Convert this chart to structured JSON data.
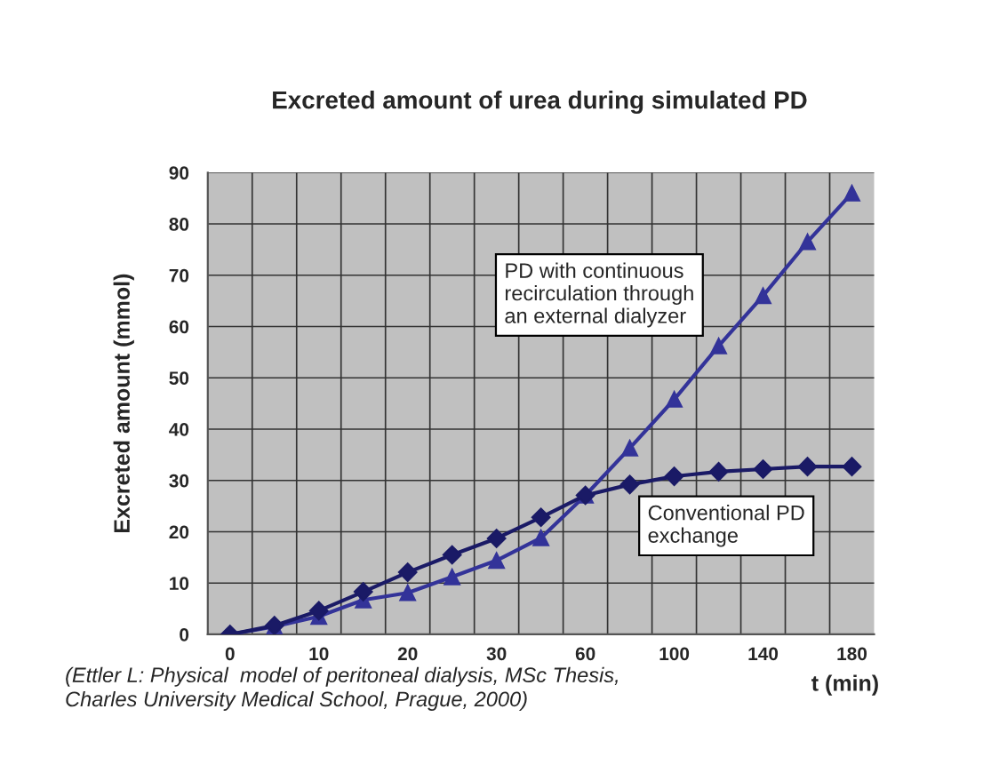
{
  "chart_data": {
    "type": "line",
    "title": "Excreted amount of urea during simulated PD",
    "xlabel": "t (min)",
    "ylabel": "Excreted amount (mmol)",
    "categories": [
      "0",
      null,
      "10",
      null,
      "20",
      null,
      "30",
      null,
      "60",
      null,
      "100",
      null,
      "140",
      null,
      "180"
    ],
    "series": [
      {
        "name": "PD with continuous\nrecirculation through\nan external dialyzer",
        "color": "#333399",
        "marker": "triangle",
        "values": [
          0,
          1.5,
          3.5,
          6.7,
          8.1,
          11.2,
          14.4,
          18.8,
          27.1,
          36.3,
          45.8,
          56.2,
          66.0,
          76.5,
          86.0
        ]
      },
      {
        "name": "Conventional PD\nexchange",
        "color": "#1a1a66",
        "marker": "diamond",
        "values": [
          0,
          1.7,
          4.6,
          8.3,
          12.1,
          15.5,
          18.7,
          22.8,
          27.1,
          29.2,
          30.8,
          31.7,
          32.2,
          32.7,
          32.7
        ]
      }
    ],
    "ylim": [
      0,
      90
    ],
    "yticks": [
      0,
      10,
      20,
      30,
      40,
      50,
      60,
      70,
      80,
      90
    ],
    "grid": true,
    "line_style": "solid",
    "annotations": [
      "(Ettler L: Physical  model of peritoneal dialysis, MSc Thesis,\nCharles University Medical School, Prague, 2000)"
    ]
  }
}
